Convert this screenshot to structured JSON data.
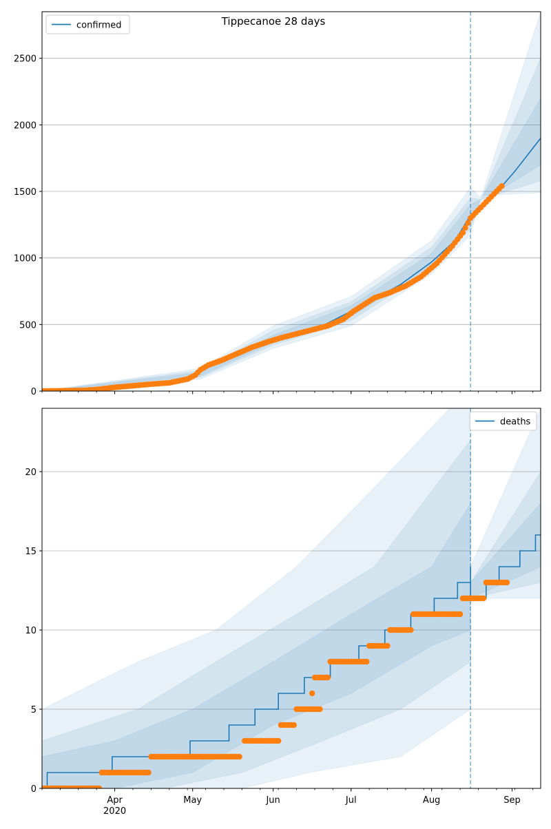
{
  "chart_data": [
    {
      "type": "line",
      "title": "Tippecanoe 28 days",
      "legend": {
        "label": "confirmed",
        "placement": "top-left"
      },
      "x_tick_labels": [
        "Apr",
        "May",
        "Jun",
        "Jul",
        "Aug",
        "Sep"
      ],
      "x_tick_dates": [
        "2020-04-01",
        "2020-05-01",
        "2020-06-01",
        "2020-07-01",
        "2020-08-01",
        "2020-09-01"
      ],
      "year_label": "2020",
      "xlim": [
        "2020-03-04",
        "2020-09-12"
      ],
      "ylim": [
        0,
        2850
      ],
      "y_ticks": [
        0,
        500,
        1000,
        1500,
        2000,
        2500
      ],
      "grid": "horizontal",
      "forecast_start": "2020-08-16",
      "observed_points": [
        [
          "2020-03-04",
          0
        ],
        [
          "2020-03-20",
          5
        ],
        [
          "2020-03-25",
          12
        ],
        [
          "2020-04-01",
          28
        ],
        [
          "2020-04-08",
          40
        ],
        [
          "2020-04-15",
          52
        ],
        [
          "2020-04-22",
          62
        ],
        [
          "2020-04-29",
          90
        ],
        [
          "2020-05-02",
          120
        ],
        [
          "2020-05-04",
          160
        ],
        [
          "2020-05-07",
          195
        ],
        [
          "2020-05-12",
          230
        ],
        [
          "2020-05-18",
          280
        ],
        [
          "2020-05-24",
          330
        ],
        [
          "2020-05-30",
          370
        ],
        [
          "2020-06-04",
          400
        ],
        [
          "2020-06-10",
          430
        ],
        [
          "2020-06-16",
          460
        ],
        [
          "2020-06-22",
          490
        ],
        [
          "2020-06-28",
          540
        ],
        [
          "2020-07-02",
          600
        ],
        [
          "2020-07-06",
          650
        ],
        [
          "2020-07-10",
          700
        ],
        [
          "2020-07-16",
          740
        ],
        [
          "2020-07-22",
          790
        ],
        [
          "2020-07-28",
          860
        ],
        [
          "2020-08-03",
          960
        ],
        [
          "2020-08-09",
          1090
        ],
        [
          "2020-08-13",
          1190
        ],
        [
          "2020-08-16",
          1300
        ],
        [
          "2020-08-20",
          1380
        ],
        [
          "2020-08-24",
          1460
        ],
        [
          "2020-08-28",
          1540
        ]
      ],
      "series": [
        {
          "name": "confirmed",
          "color": "#1f77b4",
          "points": [
            [
              "2020-03-04",
              0
            ],
            [
              "2020-04-01",
              25
            ],
            [
              "2020-04-29",
              95
            ],
            [
              "2020-05-15",
              260
            ],
            [
              "2020-06-01",
              385
            ],
            [
              "2020-06-20",
              490
            ],
            [
              "2020-07-05",
              640
            ],
            [
              "2020-07-20",
              800
            ],
            [
              "2020-08-01",
              970
            ],
            [
              "2020-08-10",
              1130
            ],
            [
              "2020-08-16",
              1320
            ],
            [
              "2020-08-25",
              1470
            ],
            [
              "2020-09-02",
              1650
            ],
            [
              "2020-09-12",
              1900
            ]
          ]
        }
      ],
      "bands": [
        {
          "lower": [
            [
              "2020-03-04",
              0
            ],
            [
              "2020-05-04",
              90
            ],
            [
              "2020-06-01",
              320
            ],
            [
              "2020-07-01",
              490
            ],
            [
              "2020-08-01",
              880
            ],
            [
              "2020-08-16",
              1170
            ],
            [
              "2020-08-20",
              1470
            ],
            [
              "2020-09-12",
              1490
            ]
          ],
          "upper": [
            [
              "2020-03-04",
              0
            ],
            [
              "2020-05-04",
              170
            ],
            [
              "2020-06-01",
              490
            ],
            [
              "2020-07-01",
              710
            ],
            [
              "2020-08-01",
              1130
            ],
            [
              "2020-08-16",
              1530
            ],
            [
              "2020-08-20",
              1450
            ],
            [
              "2020-09-12",
              2850
            ]
          ]
        },
        {
          "lower": [
            [
              "2020-03-04",
              0
            ],
            [
              "2020-05-04",
              105
            ],
            [
              "2020-06-01",
              345
            ],
            [
              "2020-07-01",
              530
            ],
            [
              "2020-08-01",
              920
            ],
            [
              "2020-08-16",
              1220
            ],
            [
              "2020-08-20",
              1440
            ],
            [
              "2020-09-12",
              1580
            ]
          ],
          "upper": [
            [
              "2020-03-04",
              0
            ],
            [
              "2020-05-04",
              155
            ],
            [
              "2020-06-01",
              455
            ],
            [
              "2020-07-01",
              670
            ],
            [
              "2020-08-01",
              1080
            ],
            [
              "2020-08-16",
              1450
            ],
            [
              "2020-08-20",
              1440
            ],
            [
              "2020-09-12",
              2500
            ]
          ]
        },
        {
          "lower": [
            [
              "2020-03-04",
              0
            ],
            [
              "2020-05-04",
              115
            ],
            [
              "2020-06-01",
              365
            ],
            [
              "2020-07-01",
              560
            ],
            [
              "2020-08-01",
              945
            ],
            [
              "2020-08-16",
              1270
            ],
            [
              "2020-08-20",
              1420
            ],
            [
              "2020-09-12",
              1700
            ]
          ],
          "upper": [
            [
              "2020-03-04",
              0
            ],
            [
              "2020-05-04",
              140
            ],
            [
              "2020-06-01",
              420
            ],
            [
              "2020-07-01",
              640
            ],
            [
              "2020-08-01",
              1035
            ],
            [
              "2020-08-16",
              1400
            ],
            [
              "2020-08-20",
              1440
            ],
            [
              "2020-09-12",
              2200
            ]
          ]
        }
      ]
    },
    {
      "type": "line",
      "legend": {
        "label": "deaths",
        "placement": "top-right"
      },
      "x_tick_labels": [
        "Apr",
        "May",
        "Jun",
        "Jul",
        "Aug",
        "Sep"
      ],
      "x_tick_dates": [
        "2020-04-01",
        "2020-05-01",
        "2020-06-01",
        "2020-07-01",
        "2020-08-01",
        "2020-09-01"
      ],
      "year_label": "2020",
      "xlim": [
        "2020-03-04",
        "2020-09-12"
      ],
      "ylim": [
        0,
        24
      ],
      "y_ticks": [
        0,
        5,
        10,
        15,
        20
      ],
      "grid": "horizontal",
      "forecast_start": "2020-08-16",
      "observed_segments": [
        [
          "2020-03-04",
          "2020-03-26",
          0
        ],
        [
          "2020-03-27",
          "2020-04-14",
          1
        ],
        [
          "2020-04-15",
          "2020-05-19",
          2
        ],
        [
          "2020-05-21",
          "2020-06-03",
          3
        ],
        [
          "2020-06-04",
          "2020-06-09",
          4
        ],
        [
          "2020-06-10",
          "2020-06-19",
          5
        ],
        [
          "2020-06-16",
          "2020-06-16",
          6
        ],
        [
          "2020-06-17",
          "2020-06-22",
          7
        ],
        [
          "2020-06-23",
          "2020-07-07",
          8
        ],
        [
          "2020-07-08",
          "2020-07-15",
          9
        ],
        [
          "2020-07-16",
          "2020-07-24",
          10
        ],
        [
          "2020-07-25",
          "2020-08-12",
          11
        ],
        [
          "2020-08-13",
          "2020-08-21",
          12
        ],
        [
          "2020-08-22",
          "2020-08-30",
          13
        ]
      ],
      "series": [
        {
          "name": "deaths",
          "color": "#1f77b4",
          "steps": [
            [
              "2020-03-04",
              0
            ],
            [
              "2020-03-06",
              1
            ],
            [
              "2020-03-31",
              2
            ],
            [
              "2020-04-30",
              3
            ],
            [
              "2020-05-15",
              4
            ],
            [
              "2020-05-25",
              5
            ],
            [
              "2020-06-03",
              6
            ],
            [
              "2020-06-13",
              7
            ],
            [
              "2020-06-23",
              8
            ],
            [
              "2020-07-04",
              9
            ],
            [
              "2020-07-14",
              10
            ],
            [
              "2020-07-24",
              11
            ],
            [
              "2020-08-02",
              12
            ],
            [
              "2020-08-11",
              13
            ],
            [
              "2020-08-16",
              14
            ],
            [
              "2020-08-16",
              12
            ],
            [
              "2020-08-22",
              13
            ],
            [
              "2020-08-27",
              14
            ],
            [
              "2020-09-04",
              15
            ],
            [
              "2020-09-10",
              16
            ]
          ]
        }
      ],
      "bands": [
        {
          "lower": [
            [
              "2020-03-04",
              0
            ],
            [
              "2020-05-20",
              0
            ],
            [
              "2020-06-15",
              1
            ],
            [
              "2020-07-20",
              2
            ],
            [
              "2020-08-16",
              5
            ],
            [
              "2020-08-16",
              12
            ],
            [
              "2020-09-12",
              12
            ]
          ],
          "upper": [
            [
              "2020-03-04",
              5
            ],
            [
              "2020-04-10",
              8
            ],
            [
              "2020-05-10",
              10
            ],
            [
              "2020-06-10",
              14
            ],
            [
              "2020-07-10",
              19
            ],
            [
              "2020-08-08",
              24
            ],
            [
              "2020-08-16",
              24
            ],
            [
              "2020-08-16",
              14
            ],
            [
              "2020-09-12",
              24
            ]
          ]
        },
        {
          "lower": [
            [
              "2020-03-04",
              0
            ],
            [
              "2020-04-20",
              0
            ],
            [
              "2020-05-20",
              1
            ],
            [
              "2020-06-20",
              3
            ],
            [
              "2020-07-20",
              5
            ],
            [
              "2020-08-16",
              8
            ],
            [
              "2020-08-16",
              12
            ],
            [
              "2020-09-12",
              13
            ]
          ],
          "upper": [
            [
              "2020-03-04",
              3
            ],
            [
              "2020-04-10",
              5
            ],
            [
              "2020-05-10",
              8
            ],
            [
              "2020-06-10",
              11
            ],
            [
              "2020-07-10",
              14
            ],
            [
              "2020-08-16",
              22
            ],
            [
              "2020-08-16",
              13
            ],
            [
              "2020-09-12",
              20
            ]
          ]
        },
        {
          "lower": [
            [
              "2020-03-04",
              0
            ],
            [
              "2020-04-01",
              0
            ],
            [
              "2020-05-01",
              1
            ],
            [
              "2020-06-01",
              4
            ],
            [
              "2020-07-01",
              6
            ],
            [
              "2020-08-01",
              9
            ],
            [
              "2020-08-16",
              10
            ],
            [
              "2020-08-16",
              12
            ],
            [
              "2020-09-12",
              14
            ]
          ],
          "upper": [
            [
              "2020-03-04",
              2
            ],
            [
              "2020-04-01",
              3
            ],
            [
              "2020-05-01",
              5
            ],
            [
              "2020-06-01",
              8
            ],
            [
              "2020-07-01",
              11
            ],
            [
              "2020-08-01",
              14
            ],
            [
              "2020-08-16",
              18
            ],
            [
              "2020-08-16",
              13
            ],
            [
              "2020-09-12",
              18
            ]
          ]
        }
      ]
    }
  ]
}
